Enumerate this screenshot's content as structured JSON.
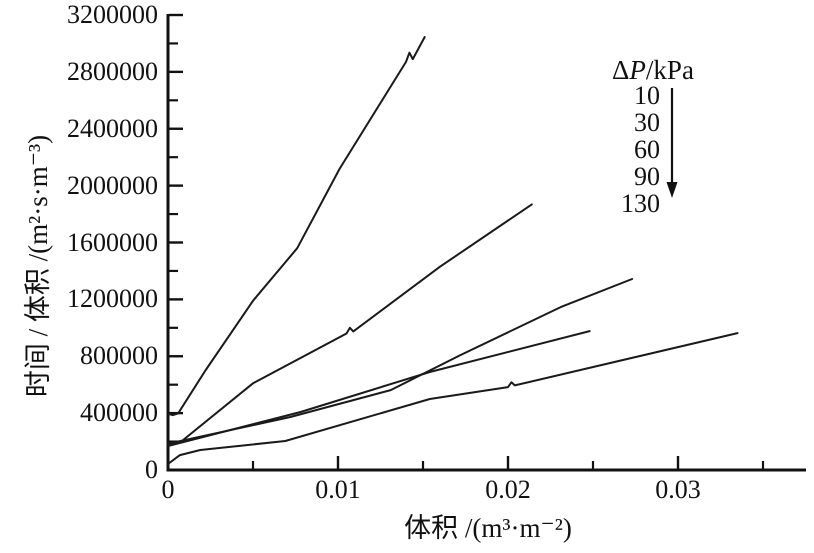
{
  "figure": {
    "background": "#ffffff",
    "ink": "#111111",
    "line_color": "#1a1a1a"
  },
  "chart_data": {
    "type": "line",
    "title": "",
    "xlabel": "体积 /(m³·m⁻²)",
    "ylabel": "时间 / 体积 /(m²·s·m⁻³)",
    "xlim": [
      0,
      0.0375
    ],
    "ylim": [
      0,
      3200000
    ],
    "grid": false,
    "x_major_ticks": [
      {
        "value": 0,
        "label": "0"
      },
      {
        "value": 0.01,
        "label": "0.01"
      },
      {
        "value": 0.02,
        "label": "0.02"
      },
      {
        "value": 0.03,
        "label": "0.03"
      }
    ],
    "x_minor_ticks": [
      0.005,
      0.015,
      0.025,
      0.035
    ],
    "y_major_ticks": [
      {
        "value": 0,
        "label": "0"
      },
      {
        "value": 400000,
        "label": "400000"
      },
      {
        "value": 800000,
        "label": "800000"
      },
      {
        "value": 1200000,
        "label": "1200000"
      },
      {
        "value": 1600000,
        "label": "1600000"
      },
      {
        "value": 2000000,
        "label": "2000000"
      },
      {
        "value": 2400000,
        "label": "2400000"
      },
      {
        "value": 2800000,
        "label": "2800000"
      },
      {
        "value": 3200000,
        "label": "3200000"
      }
    ],
    "y_minor_ticks": [
      200000,
      600000,
      1000000,
      1400000,
      1800000,
      2200000,
      2600000,
      3000000
    ],
    "legend": {
      "title_delta": "Δ",
      "title_symbol": "P",
      "title_unit": "/kPa",
      "items": [
        "10",
        "30",
        "60",
        "90",
        "130"
      ],
      "arrow_direction": "down",
      "position": "upper-right",
      "note": "arrow indicates increasing pressure from top curve (10 kPa) to bottom curve (130 kPa)"
    },
    "series": [
      {
        "name": "10",
        "pressure_kPa": 10,
        "points": [
          [
            0,
            395000
          ],
          [
            0.0003,
            386000
          ],
          [
            0.0006,
            399000
          ],
          [
            0.0022,
            700000
          ],
          [
            0.005,
            1190000
          ],
          [
            0.0076,
            1560000
          ],
          [
            0.0101,
            2120000
          ],
          [
            0.014,
            2870000
          ],
          [
            0.0142,
            2935000
          ],
          [
            0.0144,
            2890000
          ],
          [
            0.0151,
            3045000
          ]
        ]
      },
      {
        "name": "30",
        "pressure_kPa": 30,
        "points": [
          [
            0,
            190000
          ],
          [
            0.0004,
            182000
          ],
          [
            0.0007,
            193000
          ],
          [
            0.005,
            610000
          ],
          [
            0.0105,
            960000
          ],
          [
            0.0107,
            1000000
          ],
          [
            0.0109,
            975000
          ],
          [
            0.016,
            1430000
          ],
          [
            0.0214,
            1868000
          ]
        ]
      },
      {
        "name": "60",
        "pressure_kPa": 60,
        "points": [
          [
            0,
            185000
          ],
          [
            0.0072,
            373000
          ],
          [
            0.0131,
            562000
          ],
          [
            0.0172,
            808000
          ],
          [
            0.0231,
            1146000
          ],
          [
            0.0273,
            1343000
          ]
        ]
      },
      {
        "name": "90",
        "pressure_kPa": 90,
        "points": [
          [
            0,
            169000
          ],
          [
            0.0078,
            408000
          ],
          [
            0.0154,
            689000
          ],
          [
            0.0248,
            977000
          ]
        ]
      },
      {
        "name": "130",
        "pressure_kPa": 130,
        "points": [
          [
            0,
            42000
          ],
          [
            0.0007,
            105000
          ],
          [
            0.0019,
            141000
          ],
          [
            0.0069,
            204000
          ],
          [
            0.0154,
            499000
          ],
          [
            0.02,
            583000
          ],
          [
            0.0202,
            617000
          ],
          [
            0.0204,
            595000
          ],
          [
            0.0335,
            963000
          ]
        ]
      }
    ]
  }
}
